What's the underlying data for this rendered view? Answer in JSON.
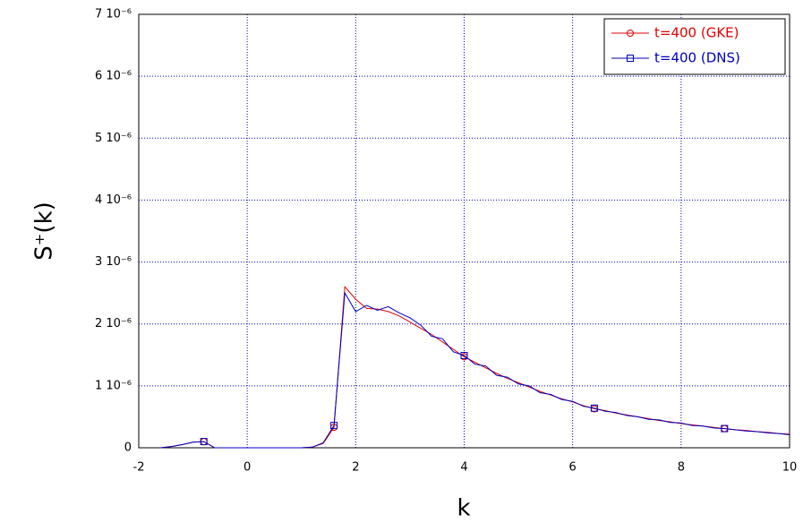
{
  "chart_data": {
    "type": "line",
    "x_label": "k",
    "y_label": "S⁺(k)",
    "xlim": [
      -2,
      10
    ],
    "xticks": [
      -2,
      0,
      2,
      4,
      6,
      8,
      10
    ],
    "ylim": [
      0,
      7e-06
    ],
    "yticks": [
      0,
      {
        "value": 1e-06,
        "label": "1 10⁻⁶"
      },
      {
        "value": 2e-06,
        "label": "2 10⁻⁶"
      },
      {
        "value": 3e-06,
        "label": "3 10⁻⁶"
      },
      {
        "value": 4e-06,
        "label": "4 10⁻⁶"
      },
      {
        "value": 5e-06,
        "label": "5 10⁻⁶"
      },
      {
        "value": 6e-06,
        "label": "6 10⁻⁶"
      },
      {
        "value": 7e-06,
        "label": "7 10⁻⁶"
      }
    ],
    "grid": true,
    "legend": "top-right",
    "x": [
      -1.6,
      -1.4,
      -1.2,
      -1.0,
      -0.8,
      -0.6,
      -0.4,
      -0.2,
      0,
      0.2,
      0.4,
      0.6,
      0.8,
      1.0,
      1.2,
      1.4,
      1.6,
      1.8,
      2.0,
      2.2,
      2.4,
      2.6,
      2.8,
      3.0,
      3.2,
      3.4,
      3.6,
      3.8,
      4.0,
      4.2,
      4.4,
      4.6,
      4.8,
      5.0,
      5.2,
      5.4,
      5.6,
      5.8,
      6.0,
      6.2,
      6.4,
      6.6,
      6.8,
      7.0,
      7.2,
      7.4,
      7.6,
      7.8,
      8.0,
      8.2,
      8.4,
      8.6,
      8.8,
      9.0,
      9.2,
      9.4,
      9.6,
      9.8,
      10.0
    ],
    "series": [
      {
        "name": "t=400 (GKE)",
        "color": "#e00000",
        "marker": "circle",
        "values": [
          0,
          2e-08,
          5e-08,
          9e-08,
          1e-07,
          0,
          0,
          0,
          0,
          0,
          0,
          0,
          0,
          0,
          1e-08,
          7e-08,
          3.3e-07,
          2.6e-06,
          2.4e-06,
          2.25e-06,
          2.24e-06,
          2.2e-06,
          2.13e-06,
          2.03e-06,
          1.93e-06,
          1.83e-06,
          1.71e-06,
          1.59e-06,
          1.47e-06,
          1.38e-06,
          1.29e-06,
          1.2e-06,
          1.12e-06,
          1.05e-06,
          9.8e-07,
          9.1e-07,
          8.5e-07,
          7.9e-07,
          7.4e-07,
          6.8e-07,
          6.3e-07,
          6e-07,
          5.6e-07,
          5.3e-07,
          5e-07,
          4.7e-07,
          4.4e-07,
          4.2e-07,
          3.9e-07,
          3.7e-07,
          3.5e-07,
          3.3e-07,
          3.1e-07,
          2.9e-07,
          2.8e-07,
          2.6e-07,
          2.5e-07,
          2.3e-07,
          2.2e-07
        ]
      },
      {
        "name": "t=400 (DNS)",
        "color": "#0000c0",
        "marker": "square",
        "values": [
          0,
          2e-08,
          5e-08,
          9e-08,
          1e-07,
          0,
          0,
          0,
          0,
          0,
          0,
          0,
          0,
          0,
          1e-08,
          8e-08,
          3.6e-07,
          2.5e-06,
          2.2e-06,
          2.3e-06,
          2.22e-06,
          2.28e-06,
          2.18e-06,
          2.1e-06,
          1.98e-06,
          1.8e-06,
          1.76e-06,
          1.55e-06,
          1.49e-06,
          1.35e-06,
          1.32e-06,
          1.17e-06,
          1.14e-06,
          1.03e-06,
          1e-06,
          8.9e-07,
          8.6e-07,
          7.8e-07,
          7.5e-07,
          6.7e-07,
          6.4e-07,
          5.9e-07,
          5.7e-07,
          5.2e-07,
          5e-07,
          4.6e-07,
          4.5e-07,
          4.1e-07,
          4e-07,
          3.6e-07,
          3.5e-07,
          3.2e-07,
          3.1e-07,
          2.9e-07,
          2.7e-07,
          2.6e-07,
          2.4e-07,
          2.3e-07,
          2.1e-07
        ]
      }
    ]
  }
}
